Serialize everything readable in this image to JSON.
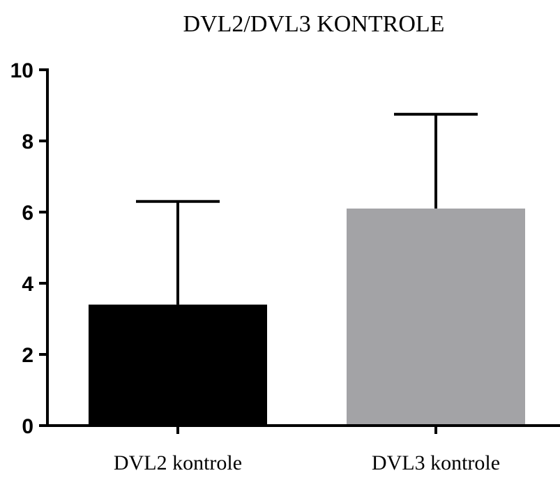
{
  "chart_data": {
    "type": "bar",
    "title": "DVL2/DVL3 KONTROLE",
    "xlabel": "",
    "ylabel": "",
    "categories": [
      "DVL2 kontrole",
      "DVL3 kontrole"
    ],
    "values": [
      3.4,
      6.1
    ],
    "error_upper": [
      6.3,
      8.75
    ],
    "bar_colors": [
      "#000000",
      "#a3a3a6"
    ],
    "ylim": [
      0,
      10
    ],
    "yticks": [
      0,
      2,
      4,
      6,
      8,
      10
    ],
    "ytick_labels": [
      "0",
      "2",
      "4",
      "6",
      "8",
      "10"
    ],
    "grid": false,
    "legend": "none"
  }
}
